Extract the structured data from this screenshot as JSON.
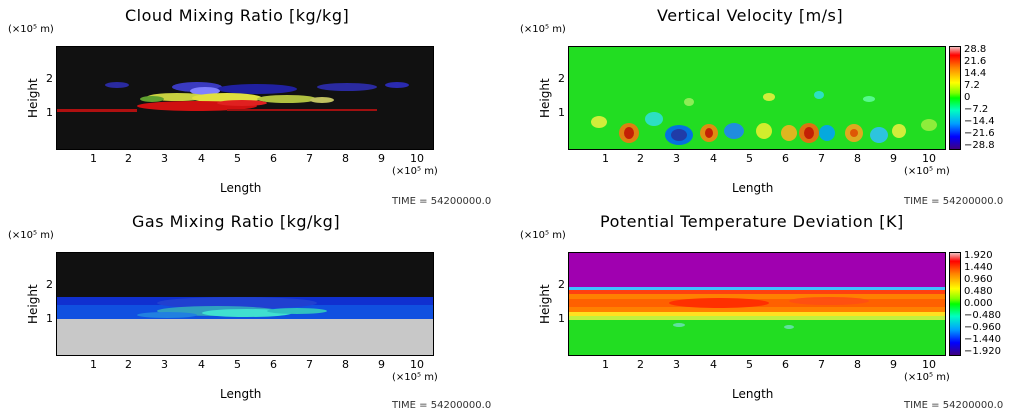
{
  "panels": [
    {
      "title": "Cloud Mixing Ratio [kg/kg]",
      "y_unit": "(×10⁵ m)",
      "ylabel": "Height",
      "xlabel": "Length",
      "x_unit": "(×10⁵ m)",
      "time": "TIME = 54200000.0",
      "xticks": [
        "1",
        "2",
        "3",
        "4",
        "5",
        "6",
        "7",
        "8",
        "9",
        "10"
      ],
      "yticks": [
        "1",
        "2"
      ]
    },
    {
      "title": "Vertical Velocity [m/s]",
      "y_unit": "(×10⁵ m)",
      "ylabel": "Height",
      "xlabel": "Length",
      "x_unit": "(×10⁵ m)",
      "time": "TIME = 54200000.0",
      "xticks": [
        "1",
        "2",
        "3",
        "4",
        "5",
        "6",
        "7",
        "8",
        "9",
        "10"
      ],
      "yticks": [
        "1",
        "2"
      ],
      "colorbar": [
        "28.8",
        "21.6",
        "14.4",
        "7.2",
        "0",
        "−7.2",
        "−14.4",
        "−21.6",
        "−28.8"
      ]
    },
    {
      "title": "Gas Mixing Ratio [kg/kg]",
      "y_unit": "(×10⁵ m)",
      "ylabel": "Height",
      "xlabel": "Length",
      "x_unit": "(×10⁵ m)",
      "time": "TIME = 54200000.0",
      "xticks": [
        "1",
        "2",
        "3",
        "4",
        "5",
        "6",
        "7",
        "8",
        "9",
        "10"
      ],
      "yticks": [
        "1",
        "2"
      ]
    },
    {
      "title": "Potential Temperature Deviation [K]",
      "y_unit": "(×10⁵ m)",
      "ylabel": "Height",
      "xlabel": "Length",
      "x_unit": "(×10⁵ m)",
      "time": "TIME = 54200000.0",
      "xticks": [
        "1",
        "2",
        "3",
        "4",
        "5",
        "6",
        "7",
        "8",
        "9",
        "10"
      ],
      "yticks": [
        "1",
        "2"
      ],
      "colorbar": [
        "1.920",
        "1.440",
        "0.960",
        "0.480",
        "0.000",
        "−0.480",
        "−0.960",
        "−1.440",
        "−1.920"
      ]
    }
  ],
  "chart_data": [
    {
      "type": "heatmap",
      "title": "Cloud Mixing Ratio [kg/kg]",
      "xlabel": "Length",
      "ylabel": "Height",
      "xlim": [
        0,
        10.4
      ],
      "ylim": [
        0,
        3
      ]
    },
    {
      "type": "heatmap",
      "title": "Vertical Velocity [m/s]",
      "xlabel": "Length",
      "ylabel": "Height",
      "xlim": [
        0,
        10.4
      ],
      "ylim": [
        0,
        3
      ],
      "colorbar_range": [
        -28.8,
        28.8
      ]
    },
    {
      "type": "heatmap",
      "title": "Gas Mixing Ratio [kg/kg]",
      "xlabel": "Length",
      "ylabel": "Height",
      "xlim": [
        0,
        10.4
      ],
      "ylim": [
        0,
        3
      ]
    },
    {
      "type": "heatmap",
      "title": "Potential Temperature Deviation [K]",
      "xlabel": "Length",
      "ylabel": "Height",
      "xlim": [
        0,
        10.4
      ],
      "ylim": [
        0,
        3
      ],
      "colorbar_range": [
        -1.92,
        1.92
      ]
    }
  ],
  "colors": {
    "cbar_scale": [
      "#f0f0f0",
      "#ff0000",
      "#ff8000",
      "#ffff00",
      "#00ff00",
      "#00ffff",
      "#0080ff",
      "#0000ff",
      "#400080"
    ]
  }
}
